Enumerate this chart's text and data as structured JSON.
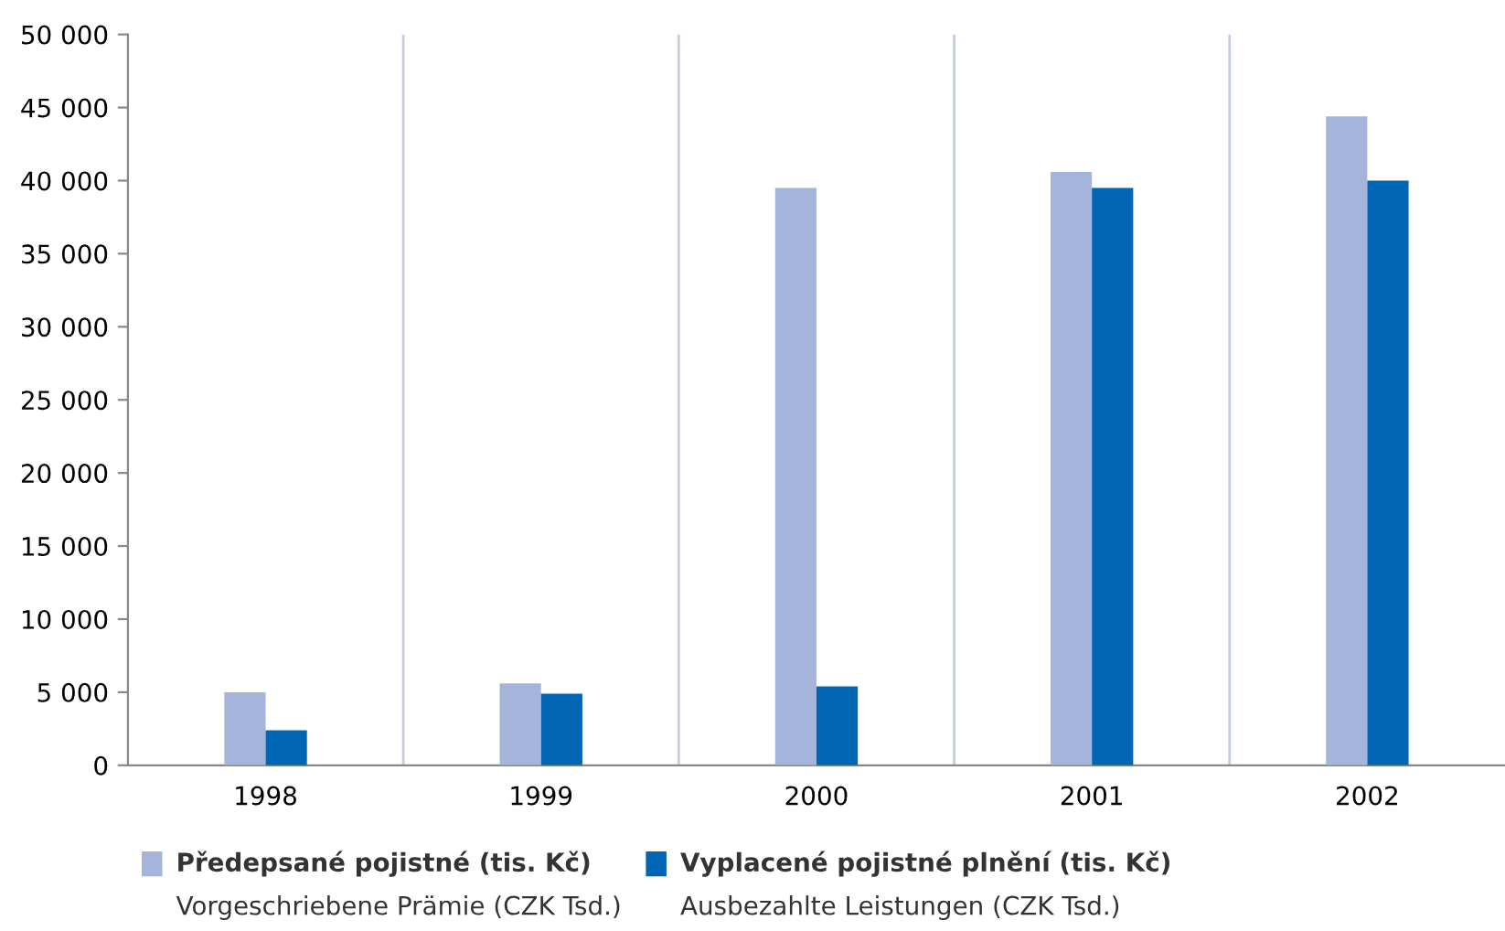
{
  "chart_data": {
    "type": "bar",
    "categories": [
      "1998",
      "1999",
      "2000",
      "2001",
      "2002"
    ],
    "series": [
      {
        "name": "Předepsané pojistné (tis. Kč)\nVorgeschriebene Prämie (CZK Tsd.)",
        "color": "#a5b4db",
        "values": [
          5000,
          5600,
          39500,
          40600,
          44400
        ]
      },
      {
        "name": "Vyplacené pojistné plnění (tis. Kč)\nAusbezahlte Leistungen (CZK Tsd.)",
        "color": "#0066b3",
        "values": [
          2400,
          4900,
          5400,
          39500,
          40000
        ]
      }
    ],
    "ylim": [
      0,
      50000
    ],
    "yticks": [
      0,
      {
        "value": 5000,
        "label": "5 000"
      },
      {
        "value": 10000,
        "label": "10 000"
      },
      {
        "value": 15000,
        "label": "15 000"
      },
      {
        "value": 20000,
        "label": "20 000"
      },
      {
        "value": 25000,
        "label": "25 000"
      },
      {
        "value": 30000,
        "label": "30 000"
      },
      {
        "value": 35000,
        "label": "35 000"
      },
      {
        "value": 40000,
        "label": "40 000"
      },
      {
        "value": 45000,
        "label": "45 000"
      },
      {
        "value": 50000,
        "label": "50 000"
      }
    ],
    "grid": "x",
    "legend": "bottom"
  }
}
